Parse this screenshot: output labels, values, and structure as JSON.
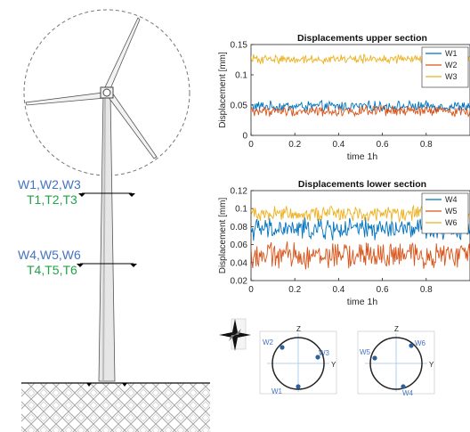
{
  "labels": {
    "upper_w": "W1,W2,W3",
    "upper_t": "T1,T2,T3",
    "lower_w": "W4,W5,W6",
    "lower_t": "T4,T5,T6"
  },
  "sections": {
    "left": {
      "axis_z": "Z",
      "axis_y": "Y",
      "points": [
        "W1",
        "W2",
        "W3"
      ]
    },
    "right": {
      "axis_z": "Z",
      "axis_y": "Y",
      "points": [
        "W4",
        "W5",
        "W6"
      ]
    }
  },
  "colors": {
    "blue_label": "#4472c4",
    "green_label": "#22a24a",
    "series": [
      "#0072bd",
      "#d95319",
      "#edb120"
    ]
  },
  "chart_data": [
    {
      "type": "line",
      "title": "Displacements upper section",
      "xlabel": "time 1h",
      "ylabel": "Displacement [mm]",
      "xlim": [
        0,
        1
      ],
      "ylim": [
        0,
        0.15
      ],
      "xticks": [
        "0",
        "0.2",
        "0.4",
        "0.6",
        "0.8"
      ],
      "yticks": [
        "0",
        "0.05",
        "0.1",
        "0.15"
      ],
      "legend_position": "top-right",
      "series": [
        {
          "name": "W1",
          "mean": 0.048,
          "amplitude": 0.007
        },
        {
          "name": "W2",
          "mean": 0.04,
          "amplitude": 0.007
        },
        {
          "name": "W3",
          "mean": 0.126,
          "amplitude": 0.006
        }
      ]
    },
    {
      "type": "line",
      "title": "Displacements lower section",
      "xlabel": "time 1h",
      "ylabel": "Displacement [mm]",
      "xlim": [
        0,
        1
      ],
      "ylim": [
        0.02,
        0.12
      ],
      "xticks": [
        "0",
        "0.2",
        "0.4",
        "0.6",
        "0.8"
      ],
      "yticks": [
        "0.02",
        "0.04",
        "0.06",
        "0.08",
        "0.1",
        "0.12"
      ],
      "legend_position": "top-right",
      "series": [
        {
          "name": "W4",
          "mean": 0.077,
          "amplitude": 0.01
        },
        {
          "name": "W5",
          "mean": 0.048,
          "amplitude": 0.012
        },
        {
          "name": "W6",
          "mean": 0.095,
          "amplitude": 0.007
        }
      ]
    }
  ]
}
